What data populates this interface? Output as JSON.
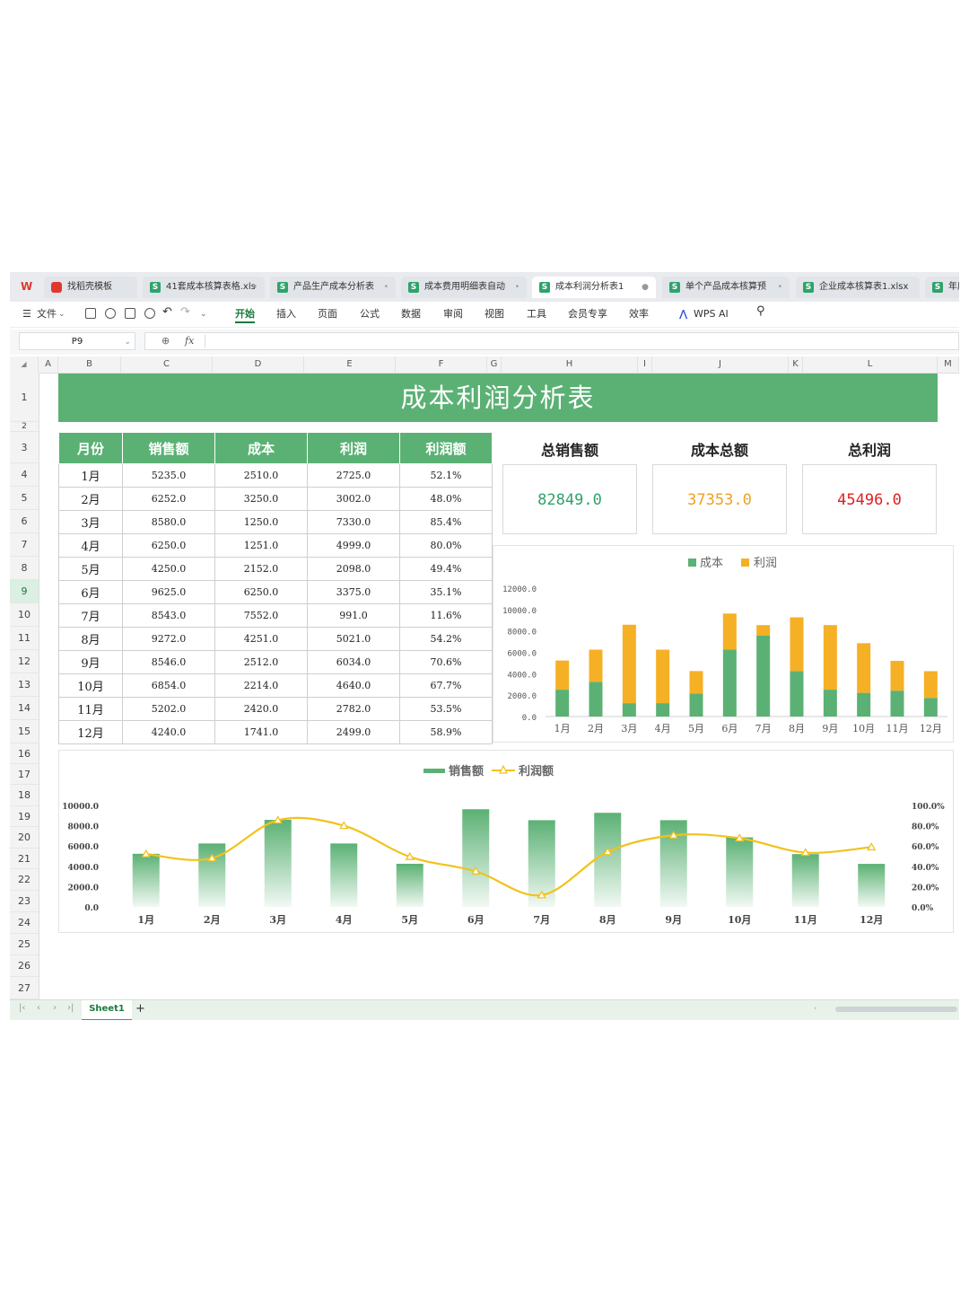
{
  "tabs": [
    {
      "label": "找稻壳模板",
      "active": false
    },
    {
      "label": "41套成本核算表格.xls",
      "active": false
    },
    {
      "label": "产品生产成本分析表",
      "active": false
    },
    {
      "label": "成本费用明细表自动",
      "active": false
    },
    {
      "label": "成本利润分析表1",
      "active": true
    },
    {
      "label": "单个产品成本核算预",
      "active": false
    },
    {
      "label": "企业成本核算表1.xlsx",
      "active": false
    },
    {
      "label": "年度",
      "active": false
    }
  ],
  "ribbon": {
    "file_menu": "文件",
    "items": [
      "开始",
      "插入",
      "页面",
      "公式",
      "数据",
      "审阅",
      "视图",
      "工具",
      "会员专享",
      "效率"
    ],
    "active": "开始",
    "ai_label": "WPS AI"
  },
  "formula_bar": {
    "cell_ref": "P9",
    "fx_label": "fx",
    "value": ""
  },
  "columns": [
    "A",
    "B",
    "C",
    "D",
    "E",
    "F",
    "G",
    "H",
    "I",
    "J",
    "K",
    "L",
    "M"
  ],
  "rows": [
    "1",
    "2",
    "3",
    "4",
    "5",
    "6",
    "7",
    "8",
    "9",
    "10",
    "11",
    "12",
    "13",
    "14",
    "15",
    "16",
    "17",
    "18",
    "19",
    "20",
    "21",
    "22",
    "23",
    "24",
    "25",
    "26",
    "27"
  ],
  "selected_row": "9",
  "sheet": {
    "title": "成本利润分析表",
    "headers": [
      "月份",
      "销售额",
      "成本",
      "利润",
      "利润额"
    ],
    "rows": [
      [
        "1月",
        "5235.0",
        "2510.0",
        "2725.0",
        "52.1%"
      ],
      [
        "2月",
        "6252.0",
        "3250.0",
        "3002.0",
        "48.0%"
      ],
      [
        "3月",
        "8580.0",
        "1250.0",
        "7330.0",
        "85.4%"
      ],
      [
        "4月",
        "6250.0",
        "1251.0",
        "4999.0",
        "80.0%"
      ],
      [
        "5月",
        "4250.0",
        "2152.0",
        "2098.0",
        "49.4%"
      ],
      [
        "6月",
        "9625.0",
        "6250.0",
        "3375.0",
        "35.1%"
      ],
      [
        "7月",
        "8543.0",
        "7552.0",
        "991.0",
        "11.6%"
      ],
      [
        "8月",
        "9272.0",
        "4251.0",
        "5021.0",
        "54.2%"
      ],
      [
        "9月",
        "8546.0",
        "2512.0",
        "6034.0",
        "70.6%"
      ],
      [
        "10月",
        "6854.0",
        "2214.0",
        "4640.0",
        "67.7%"
      ],
      [
        "11月",
        "5202.0",
        "2420.0",
        "2782.0",
        "53.5%"
      ],
      [
        "12月",
        "4240.0",
        "1741.0",
        "2499.0",
        "58.9%"
      ]
    ]
  },
  "kpi": {
    "total_sales": {
      "label": "总销售额",
      "value": "82849.0",
      "color": "#2ea36b"
    },
    "total_cost": {
      "label": "成本总额",
      "value": "37353.0",
      "color": "#f0a020"
    },
    "total_profit": {
      "label": "总利润",
      "value": "45496.0",
      "color": "#e02020"
    }
  },
  "colors": {
    "green": "#5bb174",
    "orange": "#f5b025",
    "line": "#f2c21b",
    "accent": "#1a7a3c"
  },
  "sheetbar": {
    "sheet_name": "Sheet1",
    "add_label": "+"
  },
  "chart_data": [
    {
      "type": "bar",
      "stacked": true,
      "categories": [
        "1月",
        "2月",
        "3月",
        "4月",
        "5月",
        "6月",
        "7月",
        "8月",
        "9月",
        "10月",
        "11月",
        "12月"
      ],
      "series": [
        {
          "name": "成本",
          "values": [
            2510,
            3250,
            1250,
            1251,
            2152,
            6250,
            7552,
            4251,
            2512,
            2214,
            2420,
            1741
          ]
        },
        {
          "name": "利润",
          "values": [
            2725,
            3002,
            7330,
            4999,
            2098,
            3375,
            991,
            5021,
            6034,
            4640,
            2782,
            2499
          ]
        }
      ],
      "y_ticks": [
        "0.0",
        "2000.0",
        "4000.0",
        "6000.0",
        "8000.0",
        "10000.0",
        "12000.0"
      ],
      "ylim": [
        0,
        12000
      ],
      "legend": "top-center"
    },
    {
      "type": "bar",
      "combo": "bar+line",
      "categories": [
        "1月",
        "2月",
        "3月",
        "4月",
        "5月",
        "6月",
        "7月",
        "8月",
        "9月",
        "10月",
        "11月",
        "12月"
      ],
      "series": [
        {
          "name": "销售额",
          "values": [
            5235,
            6252,
            8580,
            6250,
            4250,
            9625,
            8543,
            9272,
            8546,
            6854,
            5202,
            4240
          ],
          "axis": "left"
        },
        {
          "name": "利润额",
          "values": [
            52.1,
            48.0,
            85.4,
            80.0,
            49.4,
            35.1,
            11.6,
            54.2,
            70.6,
            67.7,
            53.5,
            58.9
          ],
          "axis": "right",
          "kind": "line"
        }
      ],
      "y_ticks": [
        "0.0",
        "2000.0",
        "4000.0",
        "6000.0",
        "8000.0",
        "10000.0"
      ],
      "y2_ticks": [
        "0.0%",
        "20.0%",
        "40.0%",
        "60.0%",
        "80.0%",
        "100.0%"
      ],
      "ylim": [
        0,
        10000
      ],
      "y2lim": [
        0,
        100
      ],
      "legend": "top-center"
    }
  ]
}
